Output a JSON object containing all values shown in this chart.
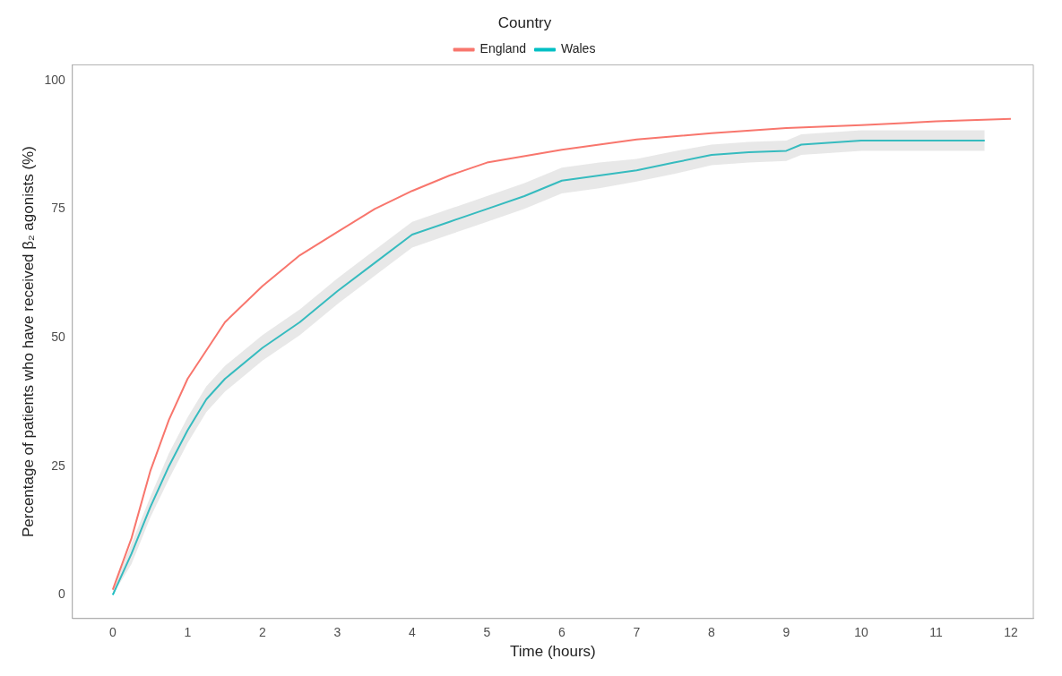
{
  "chart_data": {
    "type": "line",
    "xlabel": "Time (hours)",
    "ylabel": "Percentage of patients who have received β₂ agonists (%)",
    "legend_title": "Country",
    "legend": "top",
    "grid": false,
    "line_style": "solid",
    "marker": "none",
    "xlim": [
      -0.54,
      12.3
    ],
    "xticks": [
      0,
      1,
      2,
      3,
      4,
      5,
      6,
      7,
      8,
      9,
      10,
      11,
      12
    ],
    "ylim": [
      -4.6,
      103
    ],
    "yticks": [
      0,
      25,
      50,
      75,
      100
    ],
    "series": [
      {
        "name": "England",
        "color": "#f8766d",
        "x": [
          0,
          0.25,
          0.5,
          0.75,
          1,
          1.5,
          2,
          2.5,
          3,
          3.5,
          4,
          4.5,
          5,
          6,
          7,
          8,
          9,
          10,
          11,
          12
        ],
        "values": [
          1,
          11,
          24,
          34,
          42,
          53,
          60,
          66,
          70.5,
          75,
          78.5,
          81.5,
          84,
          86.5,
          88.5,
          89.7,
          90.7,
          91.3,
          92,
          92.5
        ]
      },
      {
        "name": "Wales",
        "color": "#00bfc4",
        "x": [
          0,
          0.25,
          0.5,
          0.75,
          1,
          1.25,
          1.5,
          2,
          2.5,
          3,
          3.5,
          4,
          4.5,
          5,
          5.5,
          6,
          6.5,
          7,
          7.5,
          8,
          8.5,
          9,
          9.2,
          10,
          11,
          11.65
        ],
        "values": [
          0,
          8,
          17,
          25,
          32,
          38,
          42,
          48,
          53,
          59,
          64.5,
          70,
          72.5,
          75,
          77.5,
          80.5,
          81.5,
          82.5,
          84,
          85.5,
          86,
          86.3,
          87.5,
          88.3,
          88.3,
          88.3
        ],
        "lower": [
          0,
          6,
          15,
          22.5,
          29.5,
          35.5,
          39.5,
          45.5,
          50.5,
          56.5,
          62,
          67.5,
          70,
          72.5,
          75,
          78,
          79,
          80.3,
          81.8,
          83.5,
          84,
          84.3,
          85.5,
          86.3,
          86.3,
          86.3
        ],
        "upper": [
          1,
          10,
          19,
          27.5,
          34.5,
          40.5,
          44.5,
          50.5,
          55.5,
          61.5,
          67,
          72.5,
          75,
          77.5,
          80,
          83,
          84,
          84.7,
          86.2,
          87.5,
          88,
          88.3,
          89.5,
          90.3,
          90.3,
          90.3
        ]
      }
    ]
  }
}
